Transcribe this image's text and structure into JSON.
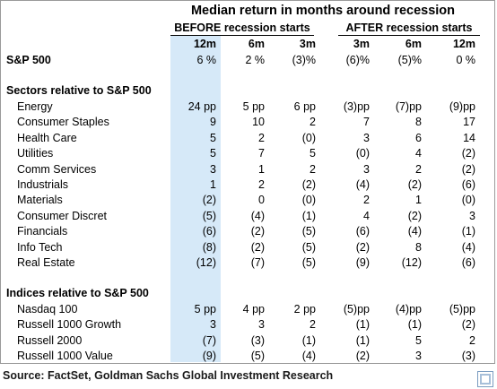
{
  "title": "Median return in months around recession",
  "before_label": "BEFORE recession starts",
  "after_label": "AFTER recession starts",
  "columns": [
    "12m",
    "6m",
    "3m",
    "3m",
    "6m",
    "12m"
  ],
  "sp500": {
    "label": "S&P 500",
    "values": [
      "6 %",
      "2 %",
      "(3)%",
      "(6)%",
      "(5)%",
      "0 %"
    ]
  },
  "sectors_header": "Sectors relative to S&P 500",
  "sectors": [
    {
      "label": "Energy",
      "values": [
        "24 pp",
        "5 pp",
        "6 pp",
        "(3)pp",
        "(7)pp",
        "(9)pp"
      ]
    },
    {
      "label": "Consumer Staples",
      "values": [
        "9",
        "10",
        "2",
        "7",
        "8",
        "17"
      ]
    },
    {
      "label": "Health Care",
      "values": [
        "5",
        "2",
        "(0)",
        "3",
        "6",
        "14"
      ]
    },
    {
      "label": "Utilities",
      "values": [
        "5",
        "7",
        "5",
        "(0)",
        "4",
        "(2)"
      ]
    },
    {
      "label": "Comm Services",
      "values": [
        "3",
        "1",
        "2",
        "3",
        "2",
        "(2)"
      ]
    },
    {
      "label": "Industrials",
      "values": [
        "1",
        "2",
        "(2)",
        "(4)",
        "(2)",
        "(6)"
      ]
    },
    {
      "label": "Materials",
      "values": [
        "(2)",
        "0",
        "(0)",
        "2",
        "1",
        "(0)"
      ]
    },
    {
      "label": "Consumer Discret",
      "values": [
        "(5)",
        "(4)",
        "(1)",
        "4",
        "(2)",
        "3"
      ]
    },
    {
      "label": "Financials",
      "values": [
        "(6)",
        "(2)",
        "(5)",
        "(6)",
        "(4)",
        "(1)"
      ]
    },
    {
      "label": "Info Tech",
      "values": [
        "(8)",
        "(2)",
        "(5)",
        "(2)",
        "8",
        "(4)"
      ]
    },
    {
      "label": "Real Estate",
      "values": [
        "(12)",
        "(7)",
        "(5)",
        "(9)",
        "(12)",
        "(6)"
      ]
    }
  ],
  "indices_header": "Indices relative to S&P 500",
  "indices": [
    {
      "label": "Nasdaq 100",
      "values": [
        "5 pp",
        "4 pp",
        "2 pp",
        "(5)pp",
        "(4)pp",
        "(5)pp"
      ]
    },
    {
      "label": "Russell 1000 Growth",
      "values": [
        "3",
        "3",
        "2",
        "(1)",
        "(1)",
        "(2)"
      ]
    },
    {
      "label": "Russell 2000",
      "values": [
        "(7)",
        "(3)",
        "(1)",
        "(1)",
        "5",
        "2"
      ]
    },
    {
      "label": "Russell 1000 Value",
      "values": [
        "(9)",
        "(5)",
        "(4)",
        "(2)",
        "3",
        "(3)"
      ]
    }
  ],
  "source": "Source: FactSet, Goldman Sachs Global Investment Research",
  "logo_icon": "goldman-sachs-logo-icon",
  "highlight_color": "#d6e9f8"
}
